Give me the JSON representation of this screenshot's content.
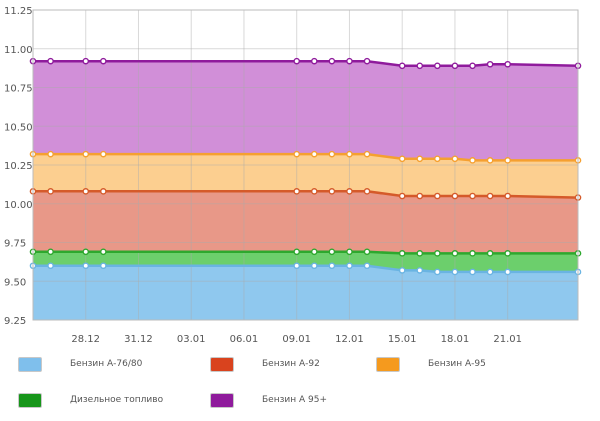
{
  "chart_data": {
    "type": "area",
    "x": [
      "25.12",
      "26.12",
      "28.12",
      "29.12",
      "09.01",
      "10.01",
      "11.01",
      "12.01",
      "13.01",
      "15.01",
      "16.01",
      "17.01",
      "18.01",
      "19.01",
      "20.01",
      "21.01",
      "25.01"
    ],
    "x_ticks": [
      "28.12",
      "31.12",
      "03.01",
      "06.01",
      "09.01",
      "12.01",
      "15.01",
      "18.01",
      "21.01"
    ],
    "y_ticks": [
      "9.25",
      "9.50",
      "9.75",
      "10.00",
      "10.25",
      "10.50",
      "10.75",
      "11.00",
      "11.25"
    ],
    "ylim": [
      9.25,
      11.25
    ],
    "grid": true,
    "legend_position": "bottom",
    "series": [
      {
        "name": "Бензин А-76/80",
        "color": "#8fc8ee",
        "line": "#6ab4e2",
        "values": [
          9.6,
          9.6,
          9.6,
          9.6,
          9.6,
          9.6,
          9.6,
          9.6,
          9.6,
          9.57,
          9.57,
          9.56,
          9.56,
          9.56,
          9.56,
          9.56,
          9.56
        ]
      },
      {
        "name": "Дизельное топливо",
        "color": "#6ccf6c",
        "line": "#2ea82e",
        "values": [
          9.69,
          9.69,
          9.69,
          9.69,
          9.69,
          9.69,
          9.69,
          9.69,
          9.69,
          9.68,
          9.68,
          9.68,
          9.68,
          9.68,
          9.68,
          9.68,
          9.68
        ]
      },
      {
        "name": "Бензин А-92",
        "color": "#e89888",
        "line": "#d55a2a",
        "values": [
          10.08,
          10.08,
          10.08,
          10.08,
          10.08,
          10.08,
          10.08,
          10.08,
          10.08,
          10.05,
          10.05,
          10.05,
          10.05,
          10.05,
          10.05,
          10.05,
          10.04
        ]
      },
      {
        "name": "Бензин А-95",
        "color": "#fccf90",
        "line": "#f5a030",
        "values": [
          10.32,
          10.32,
          10.32,
          10.32,
          10.32,
          10.32,
          10.32,
          10.32,
          10.32,
          10.29,
          10.29,
          10.29,
          10.29,
          10.28,
          10.28,
          10.28,
          10.28
        ]
      },
      {
        "name": "Бензин А 95+",
        "color": "#d18fd8",
        "line": "#8f1b9c",
        "values": [
          10.92,
          10.92,
          10.92,
          10.92,
          10.92,
          10.92,
          10.92,
          10.92,
          10.92,
          10.89,
          10.89,
          10.89,
          10.89,
          10.89,
          10.9,
          10.9,
          10.89
        ]
      }
    ]
  },
  "legend": [
    {
      "label": "Бензин А-76/80",
      "color": "#7fbfec"
    },
    {
      "label": "Бензин А-92",
      "color": "#d9431e"
    },
    {
      "label": "Бензин А-95",
      "color": "#f59a1e"
    },
    {
      "label": "Дизельное топливо",
      "color": "#17961a"
    },
    {
      "label": "Бензин А 95+",
      "color": "#8f1b9c"
    }
  ]
}
